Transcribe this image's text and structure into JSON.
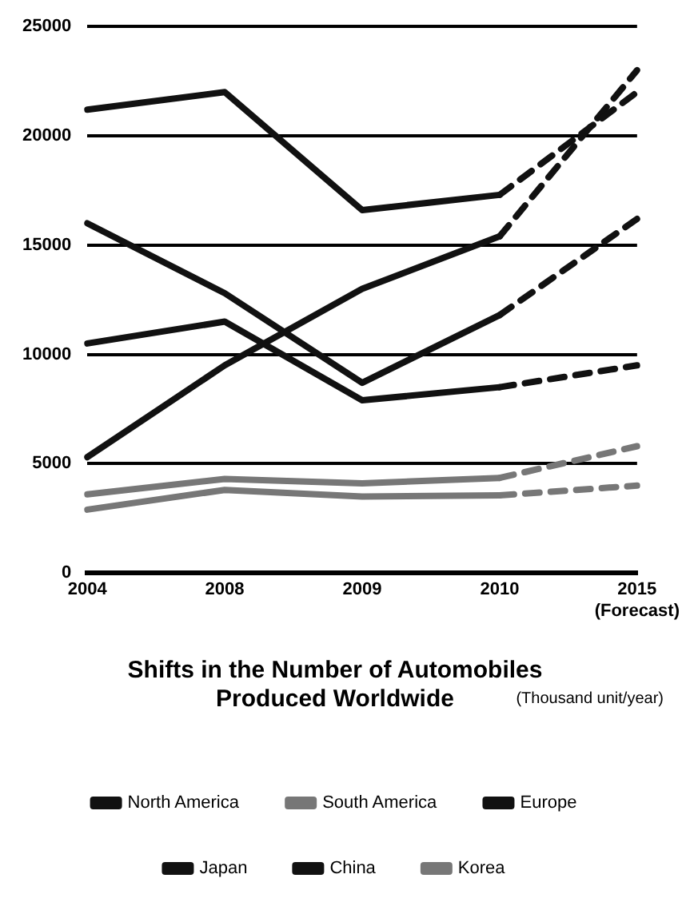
{
  "chart_data": {
    "type": "line",
    "title": "Shifts in the Number of Automobiles Produced Worldwide",
    "subtitle": "(Thousand unit/year)",
    "categories": [
      "2004",
      "2008",
      "2009",
      "2010",
      "2015 (Forecast)"
    ],
    "series": [
      {
        "name": "North America",
        "color": "#111111",
        "values": [
          16000,
          12800,
          8700,
          11800,
          null
        ]
      },
      {
        "name": "South America",
        "color": "#777777",
        "values": [
          3600,
          4300,
          4100,
          4350,
          null
        ]
      },
      {
        "name": "Europe",
        "color": "#111111",
        "values": [
          21200,
          22000,
          16600,
          17300,
          null
        ]
      },
      {
        "name": "Japan",
        "color": "#111111",
        "values": [
          10500,
          11500,
          7900,
          8500,
          null
        ]
      },
      {
        "name": "China",
        "color": "#111111",
        "values": [
          5300,
          9500,
          13000,
          15400,
          null
        ]
      },
      {
        "name": "Korea",
        "color": "#777777",
        "values": [
          2900,
          3800,
          3500,
          3550,
          null
        ]
      },
      {
        "color": "#111111",
        "line_style": "dashed",
        "values": [
          null,
          null,
          null,
          11800,
          16200
        ]
      },
      {
        "color": "#777777",
        "line_style": "dashed",
        "values": [
          null,
          null,
          null,
          4350,
          5800
        ]
      },
      {
        "color": "#111111",
        "line_style": "dashed",
        "values": [
          null,
          null,
          null,
          17300,
          22000
        ]
      },
      {
        "color": "#111111",
        "line_style": "dashed",
        "values": [
          null,
          null,
          null,
          8500,
          9500
        ]
      },
      {
        "color": "#111111",
        "line_style": "dashed",
        "values": [
          null,
          null,
          null,
          15400,
          23000
        ]
      },
      {
        "color": "#777777",
        "line_style": "dashed",
        "values": [
          null,
          null,
          null,
          3550,
          4000
        ]
      }
    ],
    "ylim": [
      0,
      25000
    ],
    "yticks": [
      0,
      5000,
      10000,
      15000,
      20000,
      25000
    ],
    "grid": "y",
    "legend": "bottom",
    "marker": "none",
    "line_style": "solid"
  }
}
